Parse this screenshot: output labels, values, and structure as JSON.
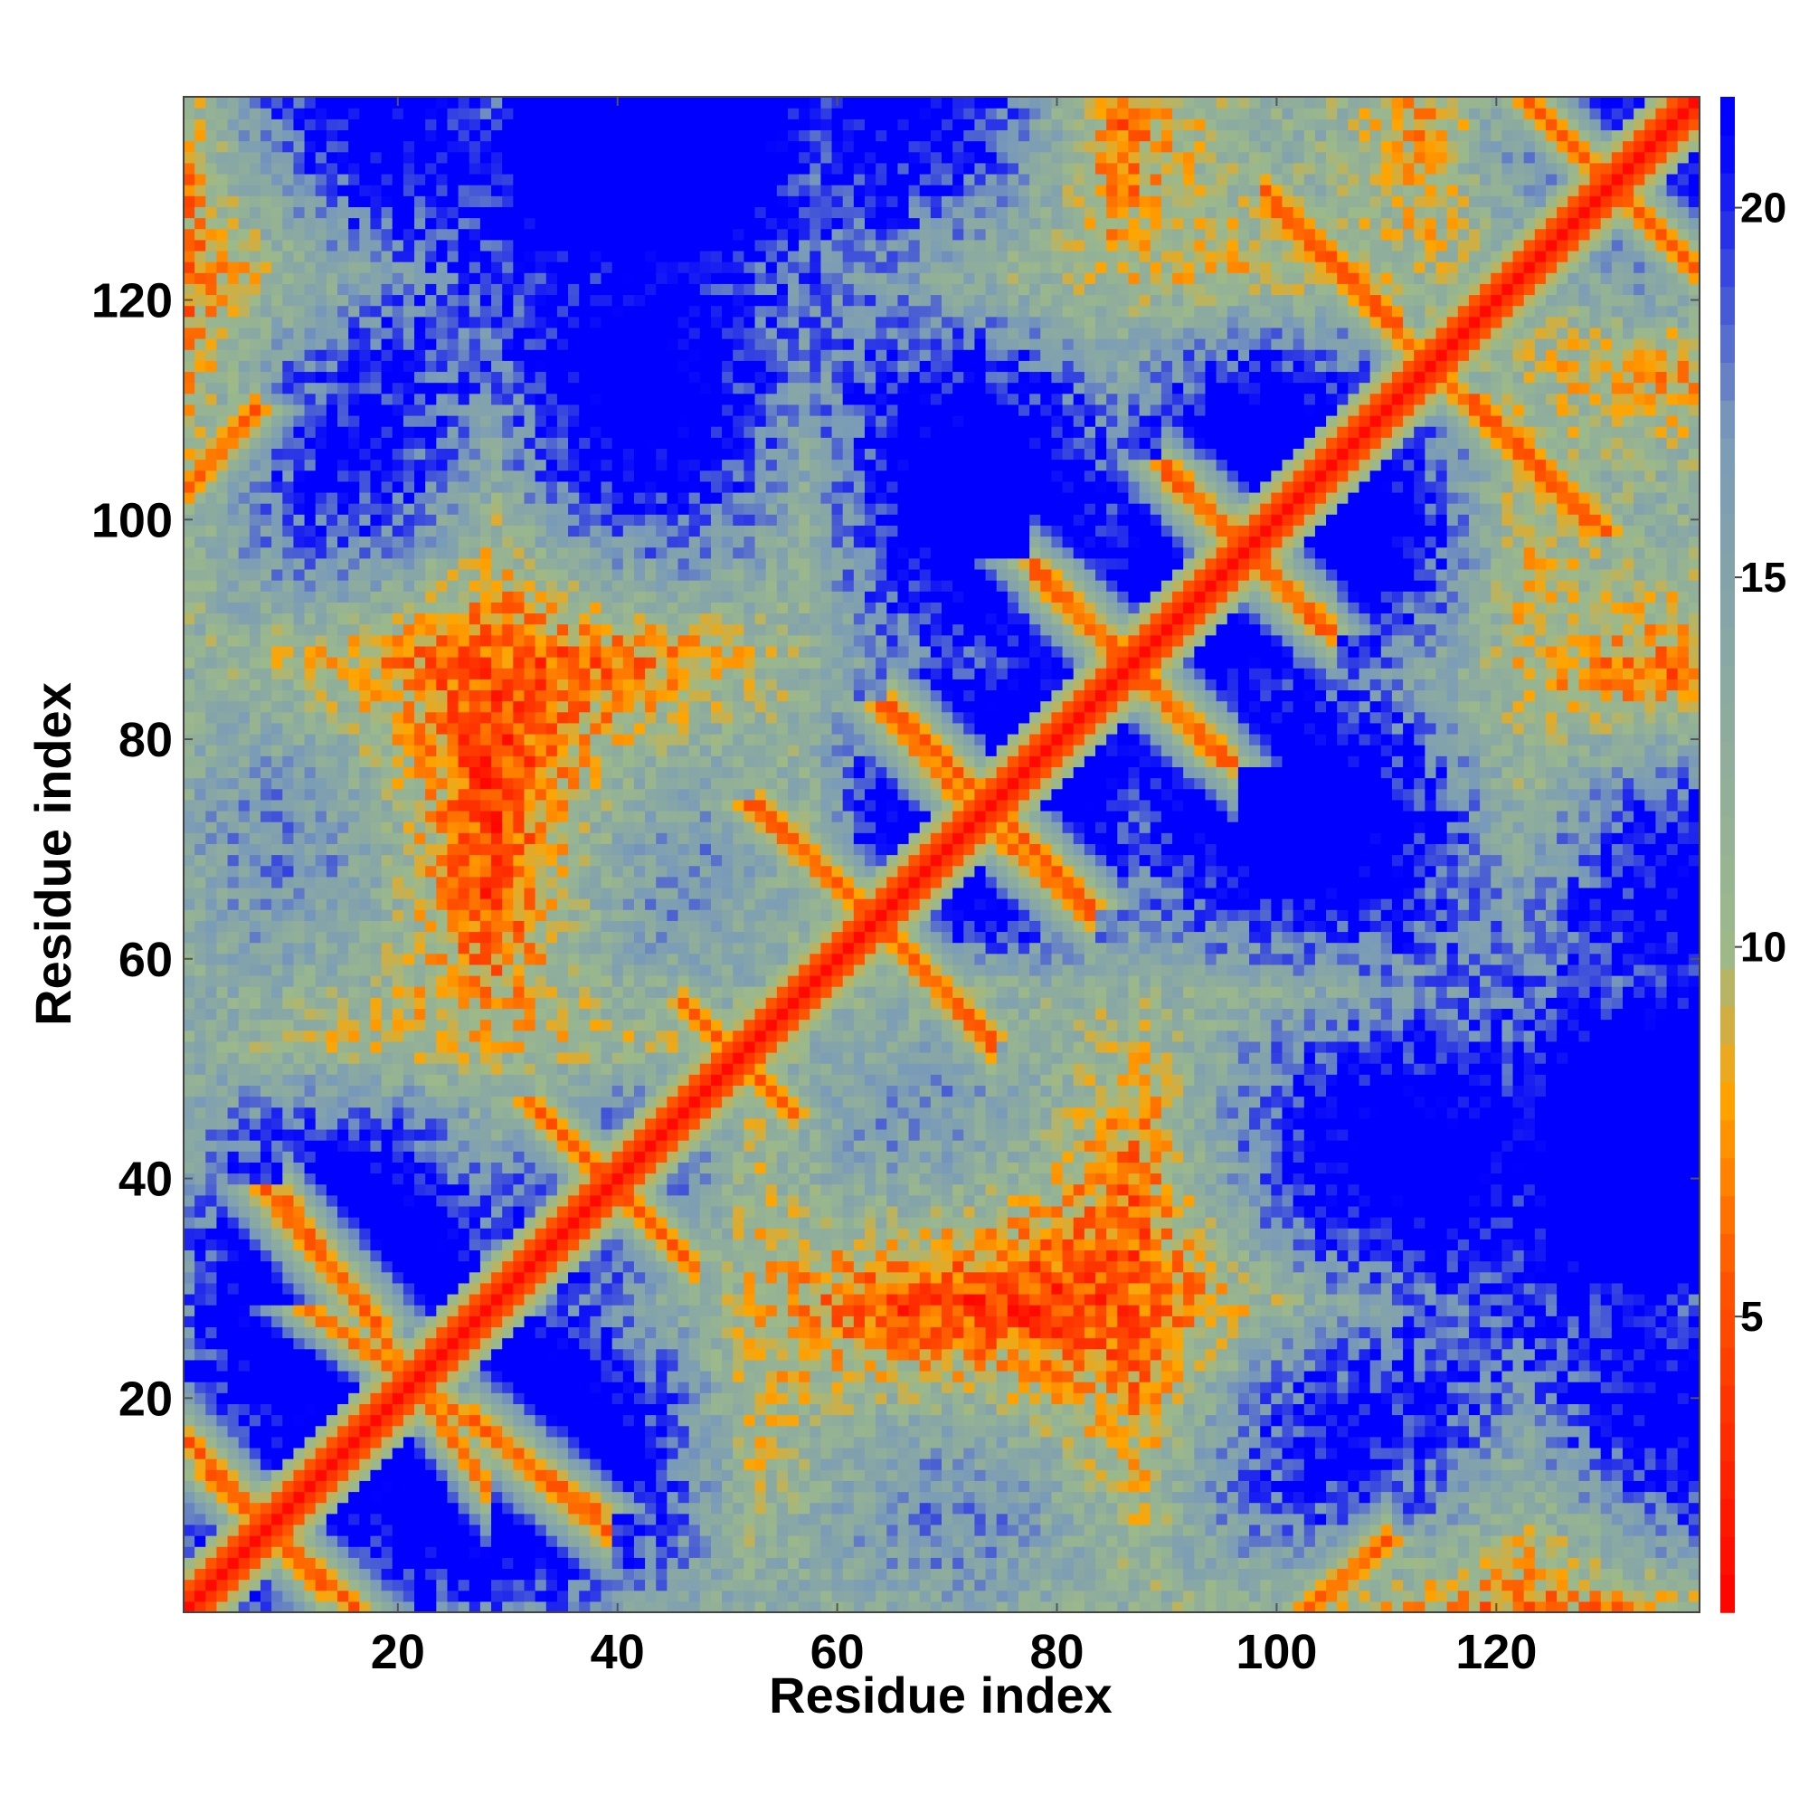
{
  "chart_data": {
    "type": "heatmap",
    "title": "",
    "xlabel": "Residue index",
    "ylabel": "Residue index",
    "n_residues": 138,
    "xlim": [
      1,
      138
    ],
    "ylim": [
      1,
      138
    ],
    "x_ticks": [
      20,
      40,
      60,
      80,
      100,
      120
    ],
    "y_ticks": [
      20,
      40,
      60,
      80,
      100,
      120
    ],
    "colorbar": {
      "range": [
        1,
        21.5
      ],
      "ticks": [
        5,
        10,
        15,
        20
      ],
      "colors": [
        "#ff0000",
        "#ff5500",
        "#ffa500",
        "#9cb98a",
        "#7a9bb8",
        "#0000ff"
      ],
      "stops": [
        1,
        5.5,
        8,
        10,
        17,
        21
      ]
    },
    "diagonal": {
      "from": 1,
      "to": 138,
      "distance": 1.5
    },
    "secondary_structure_contacts": [
      {
        "kind": "anti-parallel",
        "i_range": [
          1,
          13
        ],
        "j_range": [
          3,
          16
        ],
        "min_distance": 4.5
      },
      {
        "kind": "anti-parallel",
        "i_range": [
          10,
          28
        ],
        "j_range": [
          12,
          38
        ],
        "min_distance": 4.8
      },
      {
        "kind": "anti-parallel",
        "i_range": [
          27,
          39
        ],
        "j_range": [
          8,
          18
        ],
        "min_distance": 4.8
      },
      {
        "kind": "anti-parallel",
        "i_range": [
          33,
          47
        ],
        "j_range": [
          32,
          46
        ],
        "min_distance": 4.8
      },
      {
        "kind": "anti-parallel",
        "i_range": [
          46,
          56
        ],
        "j_range": [
          46,
          56
        ],
        "min_distance": 5.0
      },
      {
        "kind": "anti-parallel",
        "i_range": [
          53,
          67
        ],
        "j_range": [
          60,
          74
        ],
        "min_distance": 4.8
      },
      {
        "kind": "anti-parallel",
        "i_range": [
          64,
          74
        ],
        "j_range": [
          52,
          63
        ],
        "min_distance": 4.8
      },
      {
        "kind": "anti-parallel",
        "i_range": [
          65,
          73
        ],
        "j_range": [
          75,
          83
        ],
        "min_distance": 4.8
      },
      {
        "kind": "anti-parallel",
        "i_range": [
          74,
          83
        ],
        "j_range": [
          64,
          72
        ],
        "min_distance": 4.8
      },
      {
        "kind": "anti-parallel",
        "i_range": [
          78,
          89
        ],
        "j_range": [
          85,
          95
        ],
        "min_distance": 4.8
      },
      {
        "kind": "anti-parallel",
        "i_range": [
          86,
          96
        ],
        "j_range": [
          78,
          87
        ],
        "min_distance": 4.8
      },
      {
        "kind": "anti-parallel",
        "i_range": [
          90,
          99
        ],
        "j_range": [
          96,
          104
        ],
        "min_distance": 4.8
      },
      {
        "kind": "anti-parallel",
        "i_range": [
          97,
          105
        ],
        "j_range": [
          90,
          97
        ],
        "min_distance": 4.8
      },
      {
        "kind": "anti-parallel",
        "i_range": [
          99,
          111
        ],
        "j_range": [
          118,
          130
        ],
        "min_distance": 4.8
      },
      {
        "kind": "anti-parallel",
        "i_range": [
          115,
          128
        ],
        "j_range": [
          100,
          113
        ],
        "min_distance": 4.8
      },
      {
        "kind": "anti-parallel",
        "i_range": [
          123,
          138
        ],
        "j_range": [
          123,
          138
        ],
        "min_distance": 4.8
      },
      {
        "kind": "parallel",
        "i_range": [
          1,
          7
        ],
        "j_range": [
          103,
          110
        ],
        "min_distance": 4.8
      },
      {
        "kind": "parallel",
        "i_range": [
          103,
          110
        ],
        "j_range": [
          1,
          7
        ],
        "min_distance": 4.8
      }
    ]
  }
}
